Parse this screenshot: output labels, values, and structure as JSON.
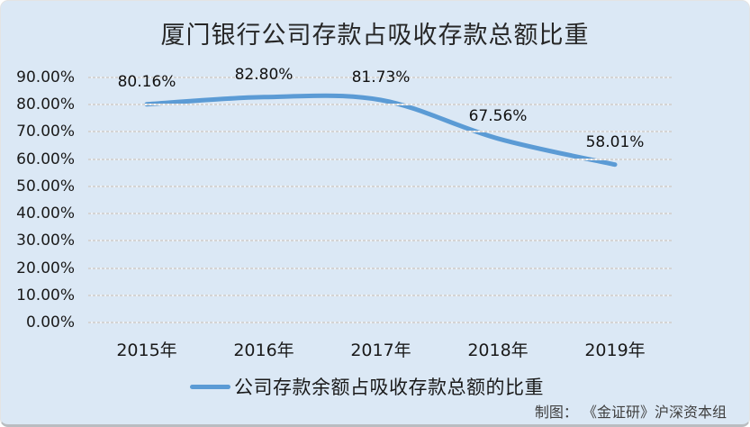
{
  "chart_data": {
    "type": "line",
    "title": "厦门银行公司存款占吸收存款总额比重",
    "categories": [
      "2015年",
      "2016年",
      "2017年",
      "2018年",
      "2019年"
    ],
    "series": [
      {
        "name": "公司存款余额占吸收存款总额的比重",
        "values": [
          80.16,
          82.8,
          81.73,
          67.56,
          58.01
        ]
      }
    ],
    "data_labels": [
      "80.16%",
      "82.80%",
      "81.73%",
      "67.56%",
      "58.01%"
    ],
    "y_ticks": [
      "90.00%",
      "80.00%",
      "70.00%",
      "60.00%",
      "50.00%",
      "40.00%",
      "30.00%",
      "20.00%",
      "10.00%",
      "0.00%"
    ],
    "ylim": [
      0,
      90
    ],
    "xlabel": "",
    "ylabel": "",
    "grid": true,
    "legend_position": "bottom",
    "smoothed": true
  },
  "footer": {
    "credit": "制图： 《金证研》沪深资本组"
  },
  "colors": {
    "background": "#dbe8f5",
    "line": "#5b9bd5",
    "gridline": "#d4d4d4",
    "gridline_alt": "#eef3f8",
    "text": "#1a1a1a",
    "credit_text": "#3f3f3f"
  }
}
